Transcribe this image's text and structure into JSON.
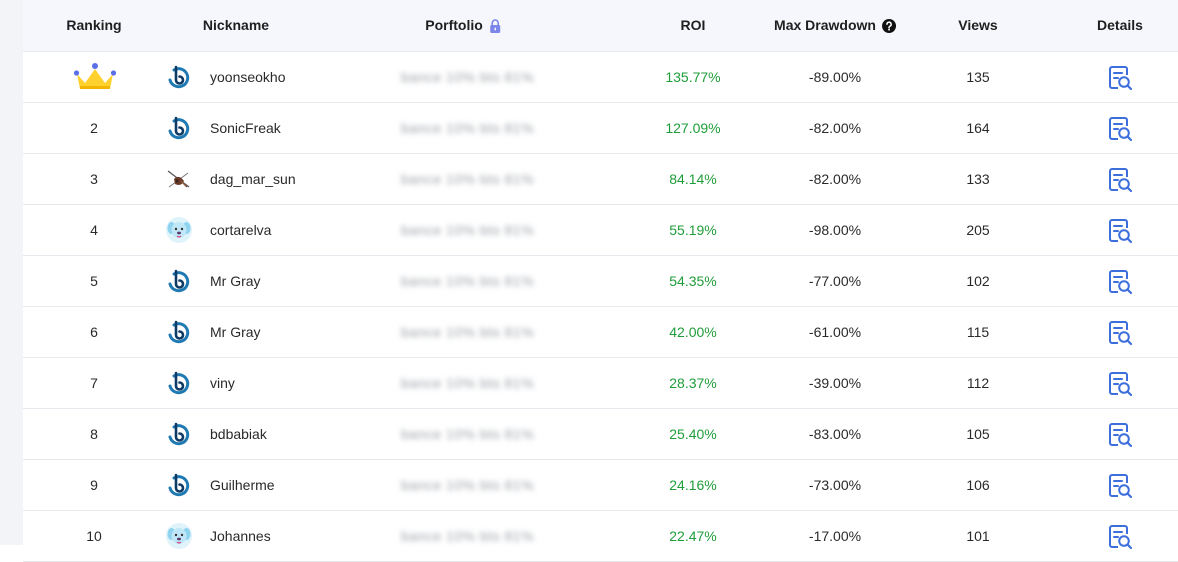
{
  "header": {
    "ranking": "Ranking",
    "nickname": "Nickname",
    "portfolio": "Porftolio",
    "roi": "ROI",
    "max_drawdown": "Max Drawdown",
    "views": "Views",
    "details": "Details"
  },
  "icons": {
    "portfolio_lock": "lock-icon",
    "max_drawdown_help": "question-circle-icon",
    "details": "document-search-icon",
    "top_rank": "crown-icon"
  },
  "colors": {
    "roi_positive": "#1f9d3a",
    "accent": "#3d6fdc",
    "lock": "#7b86e8",
    "header_bg": "#f5f7fc"
  },
  "rows": [
    {
      "rank": "",
      "avatar": "logo-avatar",
      "nickname": "yoonseokho",
      "portfolio": "bance 10% bts 81%",
      "roi": "135.77%",
      "max_drawdown": "-89.00%",
      "views": "135"
    },
    {
      "rank": "2",
      "avatar": "logo-avatar",
      "nickname": "SonicFreak",
      "portfolio": "bance 10% bts 81%",
      "roi": "127.09%",
      "max_drawdown": "-82.00%",
      "views": "164"
    },
    {
      "rank": "3",
      "avatar": "sketch-avatar",
      "nickname": "dag_mar_sun",
      "portfolio": "bance 10% bts 81%",
      "roi": "84.14%",
      "max_drawdown": "-82.00%",
      "views": "133"
    },
    {
      "rank": "4",
      "avatar": "dog-avatar",
      "nickname": "cortarelva",
      "portfolio": "bance 10% bts 81%",
      "roi": "55.19%",
      "max_drawdown": "-98.00%",
      "views": "205"
    },
    {
      "rank": "5",
      "avatar": "logo-avatar",
      "nickname": "Mr Gray",
      "portfolio": "bance 10% bts 81%",
      "roi": "54.35%",
      "max_drawdown": "-77.00%",
      "views": "102"
    },
    {
      "rank": "6",
      "avatar": "logo-avatar",
      "nickname": "Mr Gray",
      "portfolio": "bance 10% bts 81%",
      "roi": "42.00%",
      "max_drawdown": "-61.00%",
      "views": "115"
    },
    {
      "rank": "7",
      "avatar": "logo-avatar",
      "nickname": "viny",
      "portfolio": "bance 10% bts 81%",
      "roi": "28.37%",
      "max_drawdown": "-39.00%",
      "views": "112"
    },
    {
      "rank": "8",
      "avatar": "logo-avatar",
      "nickname": "bdbabiak",
      "portfolio": "bance 10% bts 81%",
      "roi": "25.40%",
      "max_drawdown": "-83.00%",
      "views": "105"
    },
    {
      "rank": "9",
      "avatar": "logo-avatar",
      "nickname": "Guilherme",
      "portfolio": "bance 10% bts 81%",
      "roi": "24.16%",
      "max_drawdown": "-73.00%",
      "views": "106"
    },
    {
      "rank": "10",
      "avatar": "dog-avatar",
      "nickname": "Johannes",
      "portfolio": "bance 10% bts 81%",
      "roi": "22.47%",
      "max_drawdown": "-17.00%",
      "views": "101"
    }
  ]
}
